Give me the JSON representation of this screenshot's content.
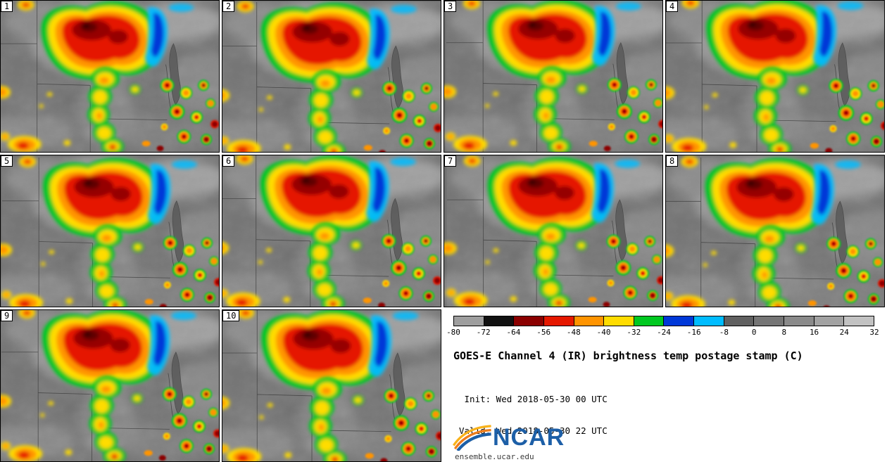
{
  "panels": [
    "1",
    "2",
    "3",
    "4",
    "5",
    "6",
    "7",
    "8",
    "9",
    "10"
  ],
  "colorbar": {
    "unit": "C",
    "tick_labels": [
      "-80",
      "-72",
      "-64",
      "-56",
      "-48",
      "-40",
      "-32",
      "-24",
      "-16",
      "-8",
      "0",
      "8",
      "16",
      "24",
      "32"
    ],
    "segment_colors": [
      "#9e9e9e",
      "#111111",
      "#8b0000",
      "#e51800",
      "#ff9400",
      "#ffdc00",
      "#00c820",
      "#0038d8",
      "#00bcff",
      "#606060",
      "#757575",
      "#8a8a8a",
      "#a2a2a2",
      "#c2c2c2"
    ]
  },
  "caption": {
    "title": "GOES-E Channel 4 (IR) brightness temp postage stamp (C)",
    "init": " Init: Wed 2018-05-30 00 UTC",
    "valid": "Valid: Wed 2018-05-30 22 UTC"
  },
  "logo": {
    "text": "NCAR",
    "site": "ensemble.ucar.edu",
    "brand_color": "#1d5fa7"
  }
}
